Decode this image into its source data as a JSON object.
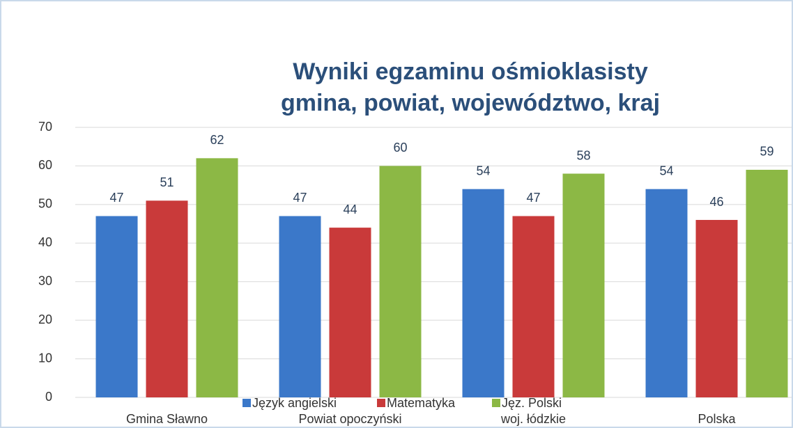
{
  "chart_data": {
    "type": "bar",
    "title": "Wyniki egzaminu ośmioklasisty",
    "subtitle": "gmina, powiat, województwo, kraj",
    "categories": [
      "Gmina Sławno",
      "Powiat opoczyński",
      "woj. łódzkie",
      "Polska"
    ],
    "series": [
      {
        "name": "Język angielski",
        "color": "#3b78c9",
        "values": [
          47,
          47,
          54,
          54
        ]
      },
      {
        "name": "Matematyka",
        "color": "#c93a3a",
        "values": [
          51,
          44,
          47,
          46
        ]
      },
      {
        "name": "Jęz. Polski",
        "color": "#8cb845",
        "values": [
          62,
          60,
          58,
          59
        ]
      }
    ],
    "ylim": [
      0,
      70
    ],
    "yticks": [
      0,
      10,
      20,
      30,
      40,
      50,
      60,
      70
    ],
    "grid": true,
    "legend": "bottom"
  }
}
